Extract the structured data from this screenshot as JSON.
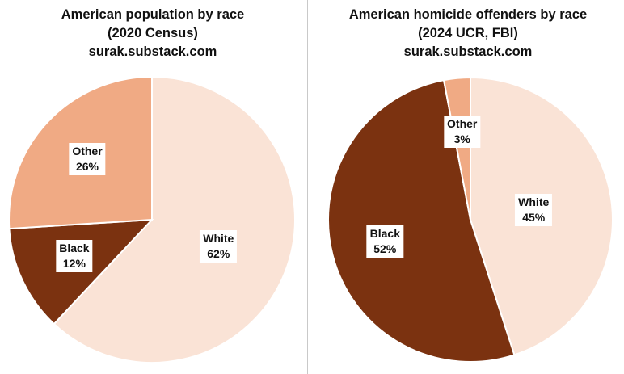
{
  "chart_data": [
    {
      "type": "pie",
      "title": [
        "American population by race",
        "(2020 Census)",
        "surak.substack.com"
      ],
      "slices": [
        {
          "label": "White",
          "value": 62,
          "value_label": "62%",
          "color": "#FAE3D6"
        },
        {
          "label": "Black",
          "value": 12,
          "value_label": "12%",
          "color": "#7B3210"
        },
        {
          "label": "Other",
          "value": 26,
          "value_label": "26%",
          "color": "#F0AA84"
        }
      ]
    },
    {
      "type": "pie",
      "title": [
        "American homicide offenders by race",
        "(2024 UCR, FBI)",
        "surak.substack.com"
      ],
      "slices": [
        {
          "label": "White",
          "value": 45,
          "value_label": "45%",
          "color": "#FAE3D6"
        },
        {
          "label": "Black",
          "value": 52,
          "value_label": "52%",
          "color": "#7B3210"
        },
        {
          "label": "Other",
          "value": 3,
          "value_label": "3%",
          "color": "#F0AA84"
        }
      ]
    }
  ]
}
